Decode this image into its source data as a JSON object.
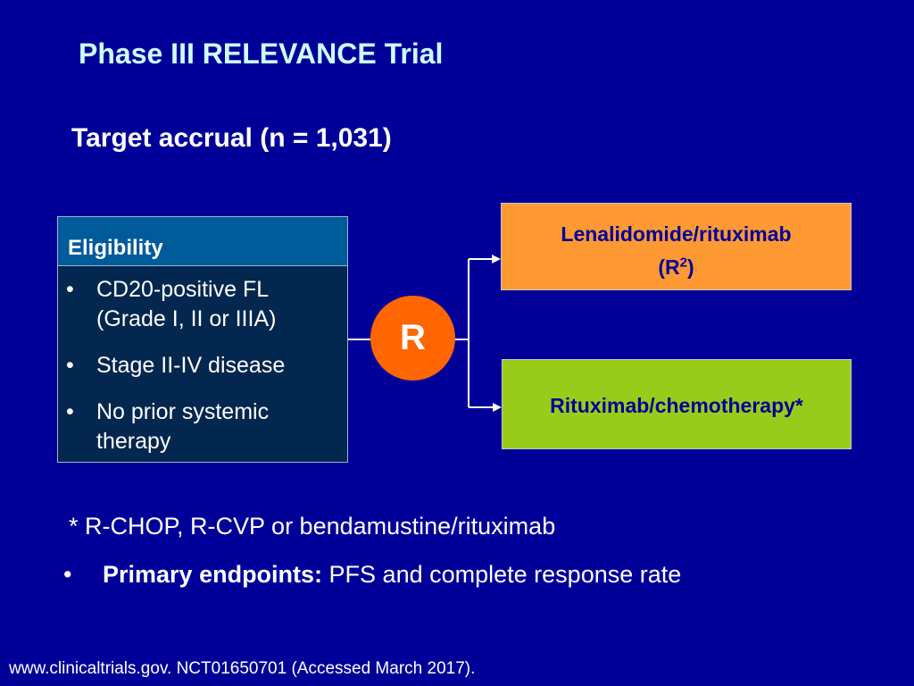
{
  "slide": {
    "title": "Phase III RELEVANCE Trial",
    "accrual": "Target accrual (n = 1,031)"
  },
  "eligibility": {
    "header": "Eligibility",
    "items": [
      {
        "line1": "CD20-positive FL",
        "line2": "(Grade I, II or IIIA)"
      },
      {
        "line1": "Stage II-IV disease",
        "line2": ""
      },
      {
        "line1": "No prior systemic",
        "line2": "therapy"
      }
    ],
    "bullet": "•"
  },
  "randomization": {
    "label": "R"
  },
  "arms": [
    {
      "line1": "Lenalidomide/rituximab",
      "line2_base": "(R",
      "line2_sup": "2",
      "line2_end": ")",
      "color": "#ff9933"
    },
    {
      "line1": "Rituximab/chemotherapy*",
      "color": "#99cc1a"
    }
  ],
  "notes": {
    "footnote": "* R-CHOP, R-CVP or bendamustine/rituximab",
    "endpoint_bullet": "•",
    "endpoint_label": "Primary endpoints:",
    "endpoint_text": " PFS and complete response rate",
    "source": "www.clinicaltrials.gov. NCT01650701 (Accessed March 2017)."
  },
  "colors": {
    "background": "#000099",
    "title": "#ccffff",
    "randomize": "#ff6600",
    "connector": "#ffffff"
  }
}
